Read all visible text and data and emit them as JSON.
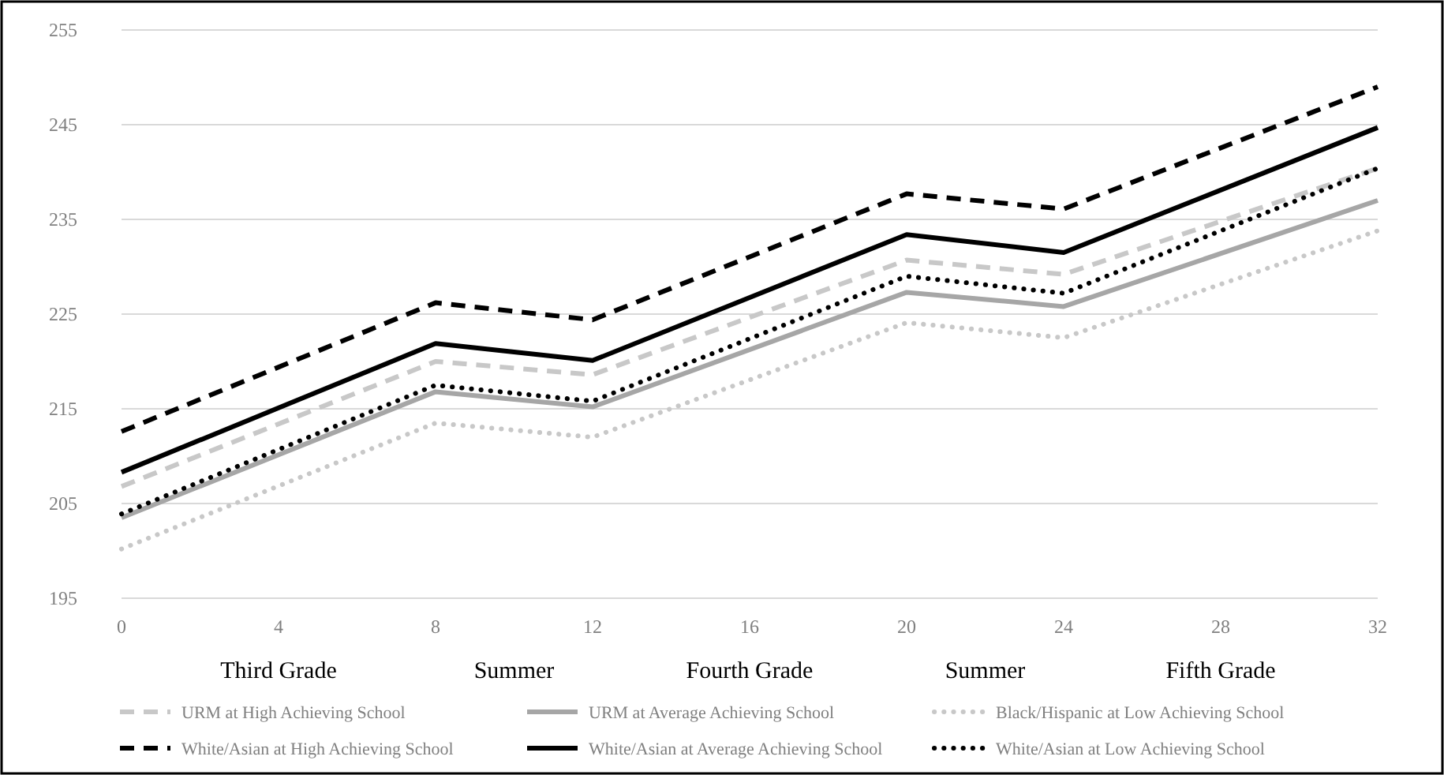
{
  "chart_data": {
    "type": "line",
    "x": [
      0,
      8,
      12,
      20,
      24,
      32
    ],
    "xlim": [
      0,
      32
    ],
    "xticks": [
      0,
      4,
      8,
      12,
      16,
      20,
      24,
      28,
      32
    ],
    "ylim": [
      195,
      255
    ],
    "yticks": [
      195,
      205,
      215,
      225,
      235,
      245,
      255
    ],
    "grid": "y",
    "legend": "bottom",
    "marker": "none",
    "annotations": [
      "Third Grade",
      "Summer",
      "Fourth Grade",
      "Summer",
      "Fifth Grade"
    ],
    "series": [
      {
        "name": "URM at High Achieving School",
        "color": "#c8c8c8",
        "line_style": "dashed",
        "values": [
          206.8,
          220.0,
          218.6,
          230.7,
          229.2,
          240.4
        ]
      },
      {
        "name": "URM at Average Achieving School",
        "color": "#a6a6a6",
        "line_style": "solid",
        "values": [
          203.5,
          216.8,
          215.2,
          227.3,
          225.8,
          237.0
        ]
      },
      {
        "name": "Black/Hispanic at Low Achieving School",
        "color": "#c8c8c8",
        "line_style": "dotted",
        "values": [
          200.2,
          213.5,
          212.0,
          224.1,
          222.5,
          233.8
        ]
      },
      {
        "name": "White/Asian at High Achieving School",
        "color": "#000000",
        "line_style": "dashed",
        "values": [
          212.6,
          226.2,
          224.4,
          237.7,
          236.1,
          249.0
        ]
      },
      {
        "name": "White/Asian at Average Achieving School",
        "color": "#000000",
        "line_style": "solid",
        "values": [
          208.3,
          221.9,
          220.1,
          233.4,
          231.5,
          244.7
        ]
      },
      {
        "name": "White/Asian at Low Achieving School",
        "color": "#000000",
        "line_style": "dotted",
        "values": [
          203.9,
          217.5,
          215.8,
          229.0,
          227.2,
          240.4
        ]
      }
    ]
  }
}
